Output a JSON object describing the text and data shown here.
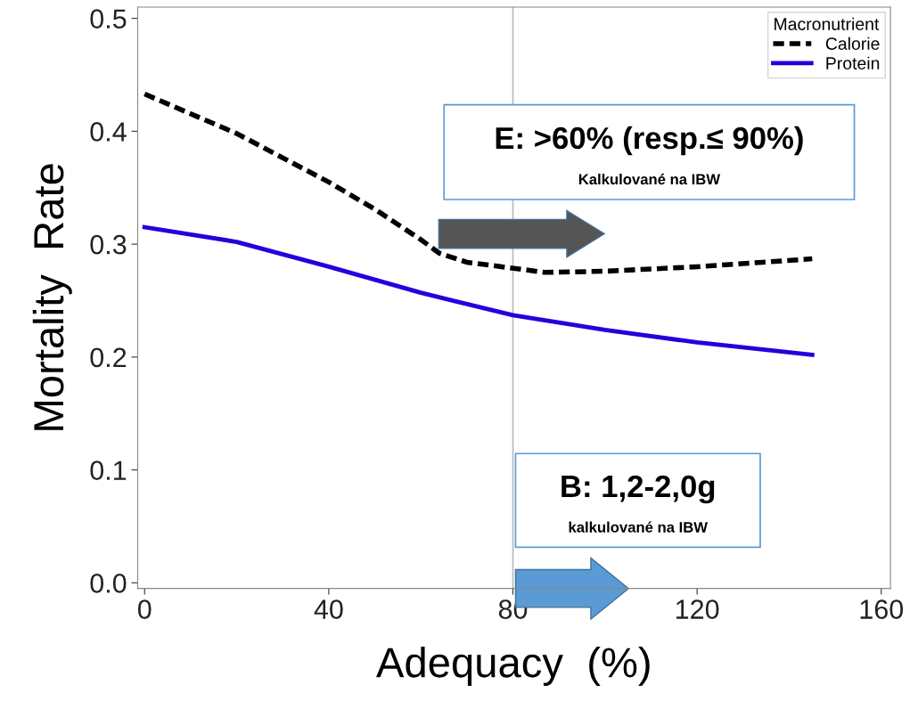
{
  "chart_data": {
    "type": "line",
    "xlabel": "Adequacy  (%)",
    "ylabel": "Mortality  Rate",
    "legend_title": "Macronutrient",
    "series": [
      {
        "name": "Calorie",
        "color": "#000000",
        "line_style": "dashed",
        "x": [
          0,
          20,
          40,
          50,
          60,
          64,
          70,
          87,
          100,
          120,
          145
        ],
        "values": [
          0.433,
          0.398,
          0.355,
          0.331,
          0.304,
          0.292,
          0.284,
          0.275,
          0.276,
          0.28,
          0.287
        ]
      },
      {
        "name": "Protein",
        "color": "#2200dd",
        "line_style": "solid",
        "x": [
          0,
          20,
          40,
          60,
          80,
          100,
          120,
          145
        ],
        "values": [
          0.315,
          0.302,
          0.28,
          0.257,
          0.237,
          0.224,
          0.213,
          0.202
        ]
      }
    ],
    "xlim": [
      -1.5,
      162
    ],
    "ylim": [
      -0.005,
      0.51
    ],
    "xticks": [
      0,
      40,
      80,
      120,
      160
    ],
    "yticks": [
      {
        "value": 0,
        "label": "0.0"
      },
      {
        "value": 0.1,
        "label": "0.1"
      },
      {
        "value": 0.2,
        "label": "0.2"
      },
      {
        "value": 0.3,
        "label": "0.3"
      },
      {
        "value": 0.4,
        "label": "0.4"
      },
      {
        "value": 0.5,
        "label": "0.5"
      }
    ],
    "ref_lines": [
      {
        "axis": "x",
        "value": 80,
        "color": "#bbbbbb"
      }
    ],
    "annotations": [
      "E: >60% (resp.≤ 90%)",
      "Kalkulované na IBW",
      "B: 1,2-2,0g",
      "kalkulované na IBW"
    ],
    "legend": "top right",
    "grid": false,
    "marker": "none"
  }
}
